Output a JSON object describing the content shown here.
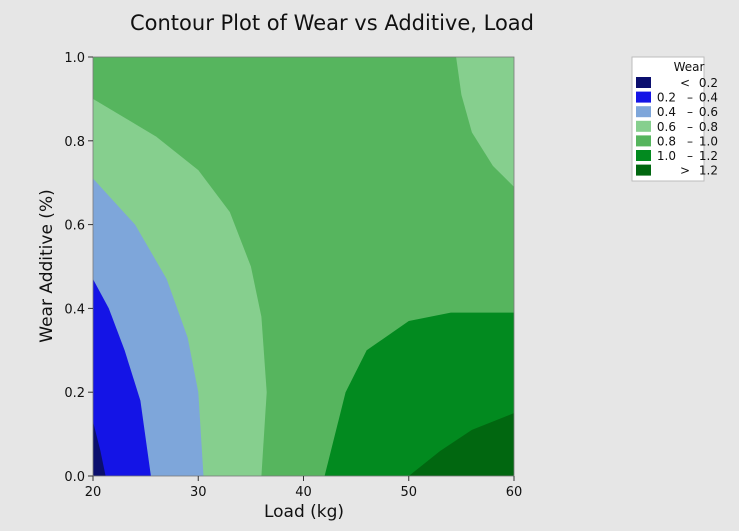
{
  "chart_data": {
    "type": "contour",
    "title": "Contour Plot of Wear vs Additive, Load",
    "xlabel": "Load (kg)",
    "ylabel": "Wear Additive (%)",
    "xlim": [
      20,
      60
    ],
    "ylim": [
      0.0,
      1.0
    ],
    "x_ticks": [
      "20",
      "30",
      "40",
      "50",
      "60"
    ],
    "y_ticks": [
      "0.0",
      "0.2",
      "0.4",
      "0.6",
      "0.8",
      "1.0"
    ],
    "legend": {
      "title": "Wear",
      "placement": "top-right",
      "entries": [
        {
          "label_parts": [
            "<",
            "0.2"
          ],
          "color": "#0b0f6e"
        },
        {
          "label_parts": [
            "0.2",
            "–",
            "0.4"
          ],
          "color": "#1414e6"
        },
        {
          "label_parts": [
            "0.4",
            "–",
            "0.6"
          ],
          "color": "#7ea6da"
        },
        {
          "label_parts": [
            "0.6",
            "–",
            "0.8"
          ],
          "color": "#86cf8e"
        },
        {
          "label_parts": [
            "0.8",
            "–",
            "1.0"
          ],
          "color": "#56b55e"
        },
        {
          "label_parts": [
            "1.0",
            "–",
            "1.2"
          ],
          "color": "#028a1f"
        },
        {
          "label_parts": [
            ">",
            "1.2"
          ],
          "color": "#016710"
        }
      ]
    },
    "regions": [
      {
        "range": "0.8 – 1.0",
        "boundary": []
      },
      {
        "range": "0.6 – 0.8",
        "boundary": [
          [
            20,
            0.9
          ],
          [
            26,
            0.81
          ],
          [
            30,
            0.73
          ],
          [
            33,
            0.63
          ],
          [
            35,
            0.5
          ],
          [
            36,
            0.38
          ],
          [
            36.5,
            0.2
          ],
          [
            36,
            0.0
          ],
          [
            20,
            0.0
          ]
        ]
      },
      {
        "range": "0.6 – 0.8",
        "boundary": [
          [
            56,
            1.0
          ],
          [
            60,
            1.0
          ],
          [
            60,
            0.69
          ],
          [
            58,
            0.74
          ],
          [
            56,
            0.82
          ],
          [
            55,
            0.91
          ],
          [
            54.5,
            1.0
          ]
        ]
      },
      {
        "range": "0.4 – 0.6",
        "boundary": [
          [
            20,
            0.71
          ],
          [
            24,
            0.6
          ],
          [
            27,
            0.47
          ],
          [
            29,
            0.33
          ],
          [
            30,
            0.2
          ],
          [
            30.5,
            0.0
          ],
          [
            20,
            0.0
          ]
        ]
      },
      {
        "range": "0.2 – 0.4",
        "boundary": [
          [
            20,
            0.47
          ],
          [
            21.5,
            0.4
          ],
          [
            23,
            0.3
          ],
          [
            24.5,
            0.18
          ],
          [
            25.5,
            0.0
          ],
          [
            20,
            0.0
          ]
        ]
      },
      {
        "range": "< 0.2",
        "boundary": [
          [
            20,
            0.13
          ],
          [
            20.7,
            0.06
          ],
          [
            21.2,
            0.0
          ],
          [
            20,
            0.0
          ]
        ]
      },
      {
        "range": "1.0 – 1.2",
        "boundary": [
          [
            42,
            0.0
          ],
          [
            44,
            0.2
          ],
          [
            46,
            0.3
          ],
          [
            50,
            0.37
          ],
          [
            54,
            0.39
          ],
          [
            60,
            0.39
          ],
          [
            60,
            0.0
          ]
        ]
      },
      {
        "range": "> 1.2",
        "boundary": [
          [
            50,
            0.0
          ],
          [
            53,
            0.06
          ],
          [
            56,
            0.11
          ],
          [
            60,
            0.15
          ],
          [
            60,
            0.0
          ]
        ]
      }
    ]
  }
}
